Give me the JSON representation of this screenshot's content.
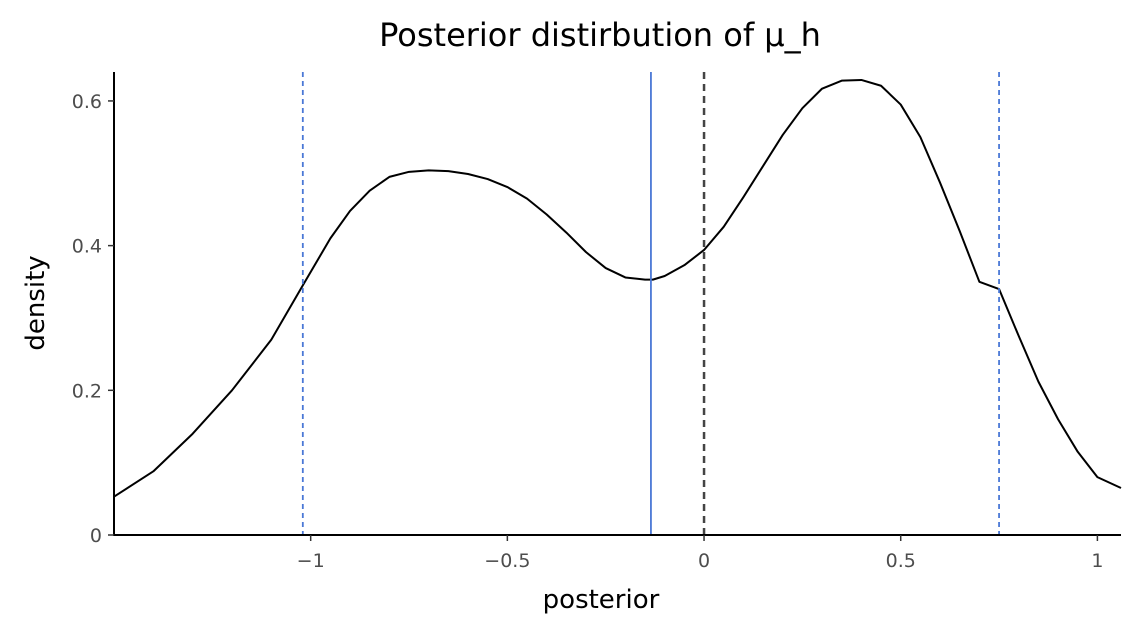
{
  "chart_data": {
    "type": "area",
    "title": "Posterior distirbution of μ_h",
    "xlabel": "posterior",
    "ylabel": "density",
    "xlim": [
      -1.5,
      1.06
    ],
    "ylim": [
      0,
      0.64
    ],
    "x_ticks": [
      -1,
      -0.5,
      0,
      0.5,
      1
    ],
    "x_tick_labels": [
      "−1",
      "−0.5",
      "0",
      "0.5",
      "1"
    ],
    "y_ticks": [
      0,
      0.2,
      0.4,
      0.6
    ],
    "y_tick_labels": [
      "0",
      "0.2",
      "0.4",
      "0.6"
    ],
    "grid": false,
    "legend": "none",
    "series": [
      {
        "x": [
          -1.5,
          -1.4,
          -1.3,
          -1.2,
          -1.1,
          -1.02,
          -0.95,
          -0.9,
          -0.85,
          -0.8,
          -0.75,
          -0.7,
          -0.65,
          -0.6,
          -0.55,
          -0.5,
          -0.45,
          -0.4,
          -0.35,
          -0.3,
          -0.25,
          -0.2,
          -0.15,
          -0.13,
          -0.1,
          -0.05,
          0.0,
          0.05,
          0.1,
          0.15,
          0.2,
          0.25,
          0.3,
          0.35,
          0.4,
          0.45,
          0.5,
          0.55,
          0.6,
          0.65,
          0.7,
          0.75,
          0.8,
          0.85,
          0.9,
          0.95,
          1.0,
          1.06
        ],
        "values": [
          0.053,
          0.088,
          0.14,
          0.2,
          0.27,
          0.345,
          0.41,
          0.448,
          0.476,
          0.495,
          0.502,
          0.504,
          0.503,
          0.499,
          0.492,
          0.481,
          0.465,
          0.443,
          0.418,
          0.391,
          0.369,
          0.356,
          0.353,
          0.353,
          0.358,
          0.373,
          0.394,
          0.426,
          0.467,
          0.51,
          0.553,
          0.59,
          0.617,
          0.628,
          0.629,
          0.621,
          0.595,
          0.55,
          0.487,
          0.42,
          0.35,
          0.34,
          0.275,
          0.212,
          0.16,
          0.115,
          0.08,
          0.065
        ]
      }
    ],
    "reference_lines": [
      {
        "x": -1.02,
        "style": "dashed",
        "color": "#4a78d6"
      },
      {
        "x": -0.135,
        "style": "solid",
        "color": "#4a78d6"
      },
      {
        "x": 0,
        "style": "dashed",
        "color": "#444444"
      },
      {
        "x": 0.75,
        "style": "dashed",
        "color": "#4a78d6"
      }
    ],
    "colors": {
      "curve": "#000000",
      "interval": "#4a78d6",
      "zero": "#444444"
    }
  }
}
